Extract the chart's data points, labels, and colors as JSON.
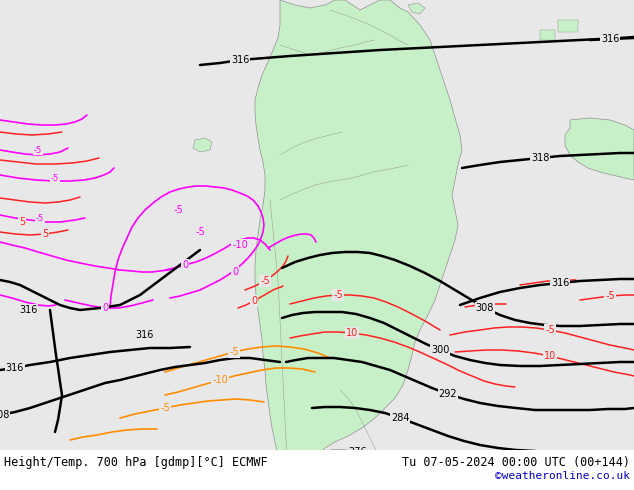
{
  "title_left": "Height/Temp. 700 hPa [gdmp][°C] ECMWF",
  "title_right": "Tu 07-05-2024 00:00 UTC (00+144)",
  "watermark": "©weatheronline.co.uk",
  "bg_color": "#e8e8e8",
  "land_color": "#c8f0c8",
  "border_color": "#909090",
  "black": "#000000",
  "red": "#ff2020",
  "orange": "#ff8c00",
  "magenta": "#ff00ff",
  "darkmagenta": "#cc00cc",
  "fig_width": 6.34,
  "fig_height": 4.9,
  "dpi": 100
}
